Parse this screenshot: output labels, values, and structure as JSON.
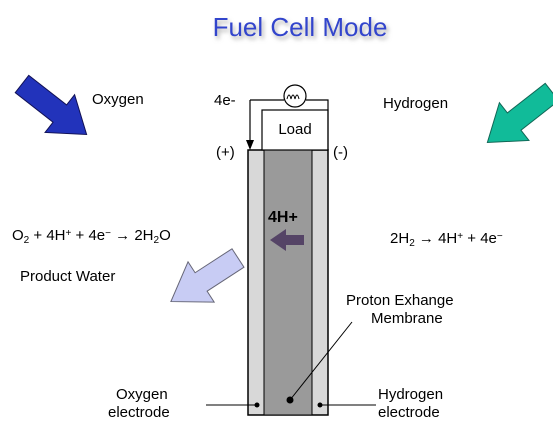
{
  "title": "Fuel Cell Mode",
  "inputs": {
    "oxygen": "Oxygen",
    "hydrogen": "Hydrogen"
  },
  "circuit": {
    "electrons": "4e-",
    "load": "Load",
    "positive": "(+)",
    "negative": "(-)"
  },
  "ion": "4H+",
  "equations": {
    "cathode": [
      {
        "t": "O"
      },
      {
        "t": "2",
        "sub": true
      },
      {
        "t": " + 4H"
      },
      {
        "t": "+",
        "sup": true
      },
      {
        "t": " + 4e"
      },
      {
        "t": "−",
        "sup": true
      },
      {
        "t": " → 2H"
      },
      {
        "t": "2",
        "sub": true
      },
      {
        "t": "O"
      }
    ],
    "anode": [
      {
        "t": "2H"
      },
      {
        "t": "2",
        "sub": true
      },
      {
        "t": " → 4H"
      },
      {
        "t": "+",
        "sup": true
      },
      {
        "t": " + 4e"
      },
      {
        "t": "−",
        "sup": true
      }
    ]
  },
  "product": "Product Water",
  "membrane": [
    "Proton Exhange",
    "Membrane"
  ],
  "electrodes": {
    "oxygen": [
      "Oxygen",
      "electrode"
    ],
    "hydrogen": [
      "Hydrogen",
      "electrode"
    ]
  }
}
